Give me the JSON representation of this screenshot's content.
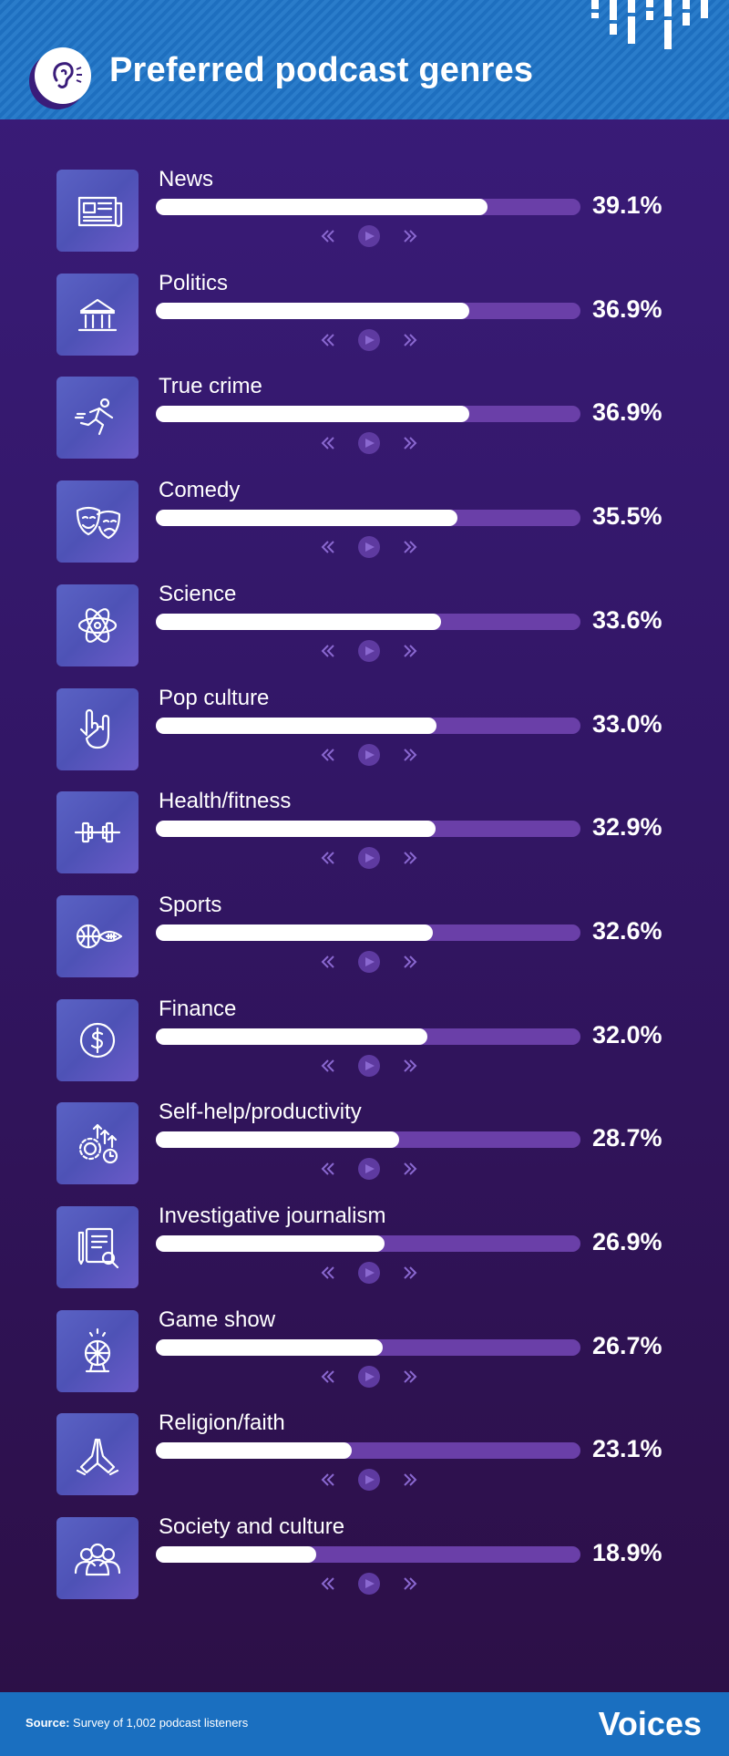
{
  "header": {
    "title": "Preferred podcast genres"
  },
  "chart_data": {
    "type": "bar",
    "title": "Preferred podcast genres",
    "unit": "%",
    "xlim": [
      0,
      50
    ],
    "categories": [
      "News",
      "Politics",
      "True crime",
      "Comedy",
      "Science",
      "Pop culture",
      "Health/fitness",
      "Sports",
      "Finance",
      "Self-help/productivity",
      "Investigative journalism",
      "Game show",
      "Religion/faith",
      "Society and culture"
    ],
    "values": [
      39.1,
      36.9,
      36.9,
      35.5,
      33.6,
      33.0,
      32.9,
      32.6,
      32.0,
      28.7,
      26.9,
      26.7,
      23.1,
      18.9
    ],
    "labels": [
      "39.1%",
      "36.9%",
      "36.9%",
      "35.5%",
      "33.6%",
      "33.0%",
      "32.9%",
      "32.6%",
      "32.0%",
      "28.7%",
      "26.9%",
      "26.7%",
      "23.1%",
      "18.9%"
    ],
    "icons": [
      "newspaper-icon",
      "government-building-icon",
      "running-figure-icon",
      "theater-masks-icon",
      "atom-icon",
      "rock-hand-icon",
      "barbell-icon",
      "balls-icon",
      "dollar-coin-icon",
      "gear-growth-icon",
      "notebook-search-icon",
      "prize-wheel-icon",
      "praying-hands-icon",
      "group-people-icon"
    ]
  },
  "colors": {
    "bar_fill": "#ffffff",
    "bar_track": "#6a3fa8",
    "icon_box": "#5a62c4",
    "header": "#1e6fbf",
    "footer": "#1a6fc0"
  },
  "footer": {
    "source_label": "Source:",
    "source_text": "Survey of 1,002 podcast listeners",
    "brand": "Voices"
  }
}
